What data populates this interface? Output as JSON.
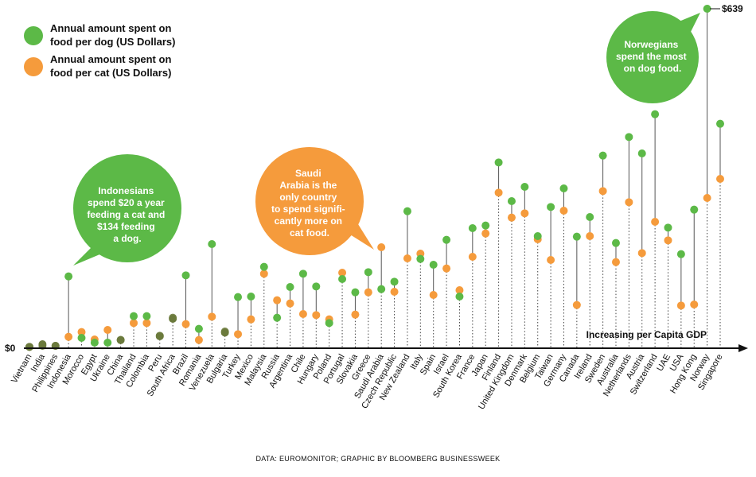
{
  "chart_data": {
    "type": "scatter",
    "legend": [
      {
        "key": "dog",
        "lines": [
          "Annual amount spent on",
          "food per dog (US Dollars)"
        ],
        "color": "#5cb947"
      },
      {
        "key": "cat",
        "lines": [
          "Annual amount spent on",
          "food per cat (US Dollars)"
        ],
        "color": "#f59b3c"
      }
    ],
    "colors": {
      "dog": "#5cb947",
      "cat": "#f59b3c",
      "mixed": "#6b7a3c",
      "axis": "#111111",
      "stem": "#555555"
    },
    "xlabel": "Increasing per Capita GDP",
    "y_zero_label": "$0",
    "max_label": "$639",
    "ylim": [
      0,
      639
    ],
    "annotations": {
      "indonesia": [
        "Indonesians",
        "spend $20 a year",
        "feeding a cat and",
        "$134 feeding",
        "a dog."
      ],
      "saudi": [
        "Saudi",
        "Arabia is the",
        "only country",
        "to spend signifi-",
        "cantly more on",
        "cat food."
      ],
      "norway": [
        "Norwegians",
        "spend the most",
        "on dog food."
      ]
    },
    "source": "DATA: EUROMONITOR; GRAPHIC BY BLOOMBERG BUSINESSWEEK",
    "categories": [
      "Vietnam",
      "India",
      "Philippines",
      "Indonesia",
      "Morocco",
      "Egypt",
      "Ukraine",
      "China",
      "Thailand",
      "Colombia",
      "Peru",
      "South Africa",
      "Brazil",
      "Romania",
      "Venezuela",
      "Bulgaria",
      "Turkey",
      "Mexico",
      "Malaysia",
      "Russia",
      "Argentina",
      "Chile",
      "Hungary",
      "Poland",
      "Portugal",
      "Slovakia",
      "Greece",
      "Saudi Arabia",
      "Czech Republic",
      "New Zealand",
      "Italy",
      "Spain",
      "Israel",
      "South Korea",
      "France",
      "Japan",
      "Finland",
      "United Kingdom",
      "Denmark",
      "Belgium",
      "Taiwan",
      "Germany",
      "Canada",
      "Ireland",
      "Sweden",
      "Australia",
      "Netherlands",
      "Austria",
      "Switzerland",
      "UAE",
      "USA",
      "Hong Kong",
      "Norway",
      "Singapore"
    ],
    "series": [
      {
        "name": "Annual amount spent on food per dog (US Dollars)",
        "key": "dog",
        "values": [
          1,
          6,
          3,
          134,
          18,
          9,
          9,
          14,
          59,
          59,
          21,
          54,
          136,
          35,
          195,
          28,
          95,
          96,
          152,
          56,
          114,
          139,
          115,
          46,
          129,
          104,
          142,
          110,
          124,
          257,
          167,
          156,
          203,
          96,
          225,
          230,
          349,
          276,
          303,
          210,
          265,
          300,
          209,
          246,
          362,
          197,
          397,
          366,
          440,
          226,
          176,
          260,
          639,
          422
        ]
      },
      {
        "name": "Annual amount spent on food per cat (US Dollars)",
        "key": "cat",
        "values": [
          1,
          3,
          3,
          20,
          29,
          15,
          33,
          14,
          46,
          46,
          22,
          56,
          44,
          14,
          58,
          30,
          25,
          53,
          139,
          89,
          83,
          63,
          61,
          53,
          141,
          62,
          104,
          189,
          105,
          168,
          177,
          99,
          149,
          108,
          171,
          215,
          292,
          245,
          253,
          204,
          165,
          258,
          80,
          210,
          295,
          161,
          274,
          178,
          237,
          202,
          79,
          81,
          282,
          318
        ]
      }
    ]
  }
}
